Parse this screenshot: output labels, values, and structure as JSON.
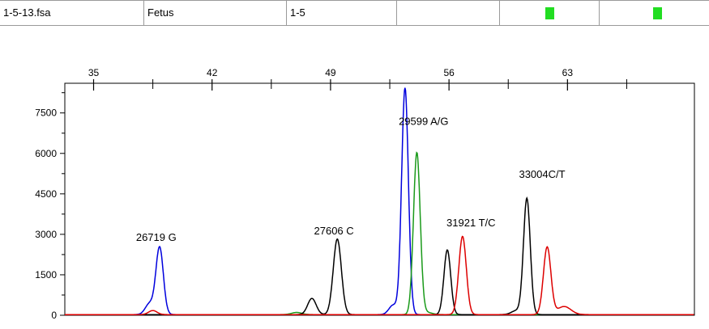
{
  "header": {
    "cells": [
      "1-5-13.fsa",
      "Fetus",
      "1-5",
      "",
      "",
      ""
    ],
    "status_colors": [
      "#22dd22",
      "#22dd22"
    ]
  },
  "chart_data": {
    "type": "line",
    "x_ticks": [
      35,
      42,
      49,
      56,
      63
    ],
    "y_ticks": [
      0,
      1500,
      3000,
      4500,
      6000,
      7500
    ],
    "xlim": [
      33.3,
      70.5
    ],
    "ylim": [
      0,
      8600
    ],
    "grid": false,
    "series": [
      {
        "color": "#0000dd",
        "peaks": [
          {
            "x": 38.3,
            "h": 400,
            "w": 0.25
          },
          {
            "x": 38.9,
            "h": 2500,
            "w": 0.22
          },
          {
            "x": 52.7,
            "h": 350,
            "w": 0.25
          },
          {
            "x": 53.4,
            "h": 8400,
            "w": 0.2
          }
        ]
      },
      {
        "color": "#1a9a1a",
        "peaks": [
          {
            "x": 47.0,
            "h": 80,
            "w": 0.3
          },
          {
            "x": 54.1,
            "h": 6000,
            "w": 0.2
          },
          {
            "x": 54.7,
            "h": 80,
            "w": 0.3
          }
        ]
      },
      {
        "color": "#000000",
        "peaks": [
          {
            "x": 47.9,
            "h": 600,
            "w": 0.25
          },
          {
            "x": 49.4,
            "h": 2800,
            "w": 0.24
          },
          {
            "x": 55.9,
            "h": 2400,
            "w": 0.2
          },
          {
            "x": 60.6,
            "h": 4300,
            "w": 0.2
          },
          {
            "x": 60.0,
            "h": 150,
            "w": 0.3
          }
        ]
      },
      {
        "color": "#dd0000",
        "peaks": [
          {
            "x": 38.5,
            "h": 150,
            "w": 0.25
          },
          {
            "x": 56.8,
            "h": 2900,
            "w": 0.22
          },
          {
            "x": 61.8,
            "h": 2500,
            "w": 0.22
          },
          {
            "x": 62.8,
            "h": 300,
            "w": 0.4
          }
        ]
      }
    ],
    "annotations": [
      {
        "text": "26719 G",
        "x": 38.7,
        "y": 2750
      },
      {
        "text": "27606 C",
        "x": 49.2,
        "y": 3000
      },
      {
        "text": "29599 A/G",
        "x": 54.5,
        "y": 7050
      },
      {
        "text": "31921 T/C",
        "x": 57.3,
        "y": 3300
      },
      {
        "text": "33004C/T",
        "x": 61.5,
        "y": 5100
      }
    ]
  }
}
